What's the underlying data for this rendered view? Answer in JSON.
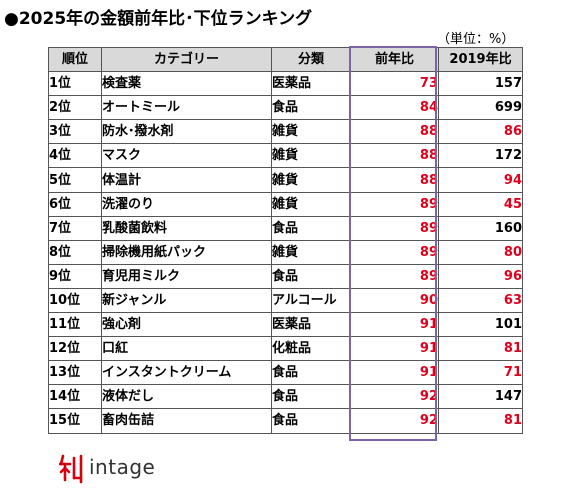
{
  "title": "●2025年の金額前年比･下位ランキング",
  "unit_note": "（単位：%）",
  "table": {
    "headers": [
      "順位",
      "カテゴリー",
      "分類",
      "前年比",
      "2019年比"
    ],
    "rows": [
      {
        "rank": "1位",
        "category": "検査薬",
        "class": "医薬品",
        "yoy": "73",
        "v2019": "157",
        "v2019_red": false
      },
      {
        "rank": "2位",
        "category": "オートミール",
        "class": "食品",
        "yoy": "84",
        "v2019": "699",
        "v2019_red": false
      },
      {
        "rank": "3位",
        "category": "防水･撥水剤",
        "class": "雑貨",
        "yoy": "88",
        "v2019": "86",
        "v2019_red": true
      },
      {
        "rank": "4位",
        "category": "マスク",
        "class": "雑貨",
        "yoy": "88",
        "v2019": "172",
        "v2019_red": false
      },
      {
        "rank": "5位",
        "category": "体温計",
        "class": "雑貨",
        "yoy": "88",
        "v2019": "94",
        "v2019_red": true
      },
      {
        "rank": "6位",
        "category": "洗濯のり",
        "class": "雑貨",
        "yoy": "89",
        "v2019": "45",
        "v2019_red": true
      },
      {
        "rank": "7位",
        "category": "乳酸菌飲料",
        "class": "食品",
        "yoy": "89",
        "v2019": "160",
        "v2019_red": false
      },
      {
        "rank": "8位",
        "category": "掃除機用紙パック",
        "class": "雑貨",
        "yoy": "89",
        "v2019": "80",
        "v2019_red": true
      },
      {
        "rank": "9位",
        "category": "育児用ミルク",
        "class": "食品",
        "yoy": "89",
        "v2019": "96",
        "v2019_red": true
      },
      {
        "rank": "10位",
        "category": "新ジャンル",
        "class": "アルコール",
        "yoy": "90",
        "v2019": "63",
        "v2019_red": true
      },
      {
        "rank": "11位",
        "category": "強心剤",
        "class": "医薬品",
        "yoy": "91",
        "v2019": "101",
        "v2019_red": false
      },
      {
        "rank": "12位",
        "category": "口紅",
        "class": "化粧品",
        "yoy": "91",
        "v2019": "81",
        "v2019_red": true
      },
      {
        "rank": "13位",
        "category": "インスタントクリーム",
        "class": "食品",
        "yoy": "91",
        "v2019": "71",
        "v2019_red": true
      },
      {
        "rank": "14位",
        "category": "液体だし",
        "class": "食品",
        "yoy": "92",
        "v2019": "147",
        "v2019_red": false
      },
      {
        "rank": "15位",
        "category": "畜肉缶詰",
        "class": "食品",
        "yoy": "92",
        "v2019": "81",
        "v2019_red": true
      }
    ]
  },
  "colors": {
    "red_value": "#e0001b",
    "header_bg": "#d9d9d9",
    "yoy_frame": "#7b64a6",
    "logo_red": "#d7000f"
  },
  "logo": {
    "text": "intage",
    "icon": "intage-logo-icon"
  }
}
